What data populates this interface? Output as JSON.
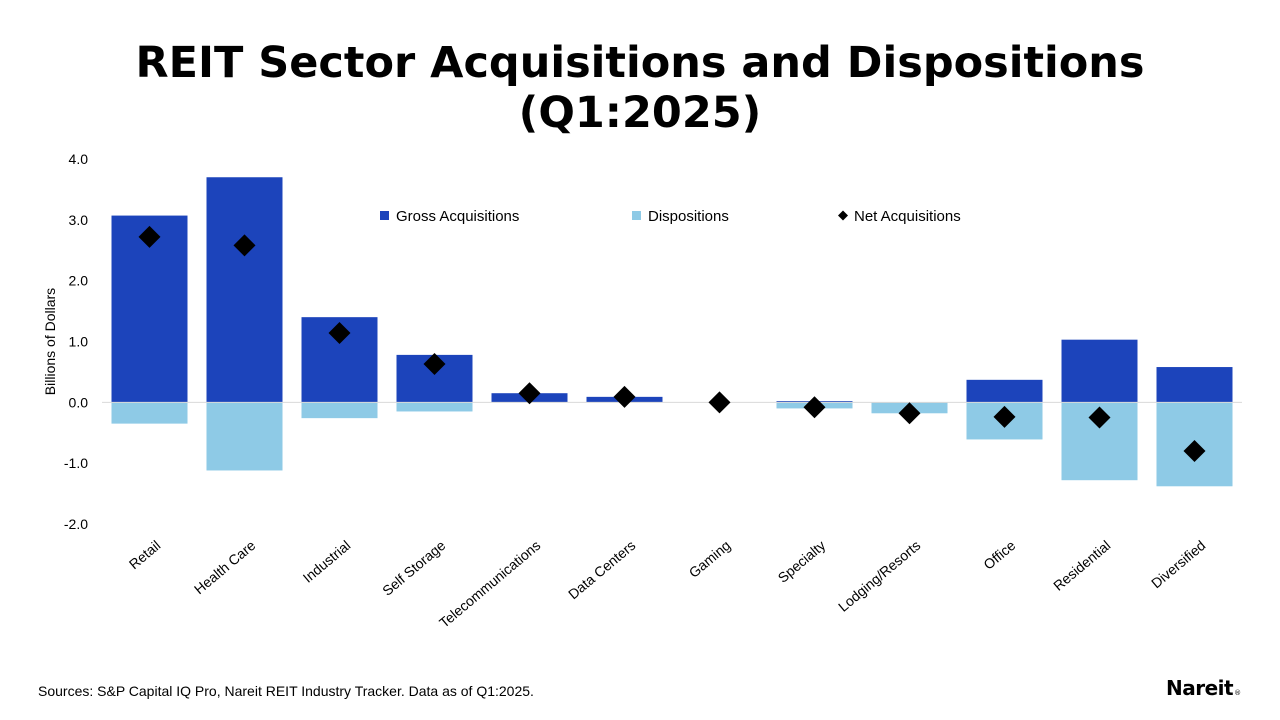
{
  "title_line1": "REIT Sector Acquisitions and Dispositions",
  "title_line2": "(Q1:2025)",
  "source": "Sources: S&P Capital IQ Pro, Nareit REIT Industry Tracker. Data as of Q1:2025.",
  "logo": {
    "text": "Nareit",
    "mark": "®"
  },
  "colors": {
    "acquisitions": "#1c44bb",
    "dispositions": "#8ecae6",
    "net": "#000000",
    "zero_line": "#d9d9d9"
  },
  "chart_data": {
    "type": "bar",
    "title": "REIT Sector Acquisitions and Dispositions (Q1:2025)",
    "xlabel": "",
    "ylabel": "Billions of Dollars",
    "ylim": [
      -2.0,
      4.0
    ],
    "yticks": [
      "4.0",
      "3.0",
      "2.0",
      "1.0",
      "0.0",
      "-1.0",
      "-2.0"
    ],
    "grid": false,
    "legend_position": "top",
    "categories": [
      "Retail",
      "Health Care",
      "Industrial",
      "Self Storage",
      "Telecommunications",
      "Data Centers",
      "Gaming",
      "Specialty",
      "Lodging/Resorts",
      "Office",
      "Residential",
      "Diversified"
    ],
    "series": [
      {
        "name": "Gross Acquisitions",
        "kind": "bar",
        "values": [
          3.07,
          3.7,
          1.4,
          0.78,
          0.15,
          0.09,
          0.0,
          0.02,
          0.0,
          0.37,
          1.03,
          0.58
        ]
      },
      {
        "name": "Dispositions",
        "kind": "bar",
        "values": [
          -0.35,
          -1.12,
          -0.26,
          -0.15,
          0.0,
          0.0,
          0.0,
          -0.1,
          -0.18,
          -0.61,
          -1.28,
          -1.38
        ]
      },
      {
        "name": "Net Acquisitions",
        "kind": "marker",
        "values": [
          2.72,
          2.58,
          1.14,
          0.63,
          0.15,
          0.09,
          0.0,
          -0.08,
          -0.18,
          -0.24,
          -0.25,
          -0.8
        ]
      }
    ]
  }
}
